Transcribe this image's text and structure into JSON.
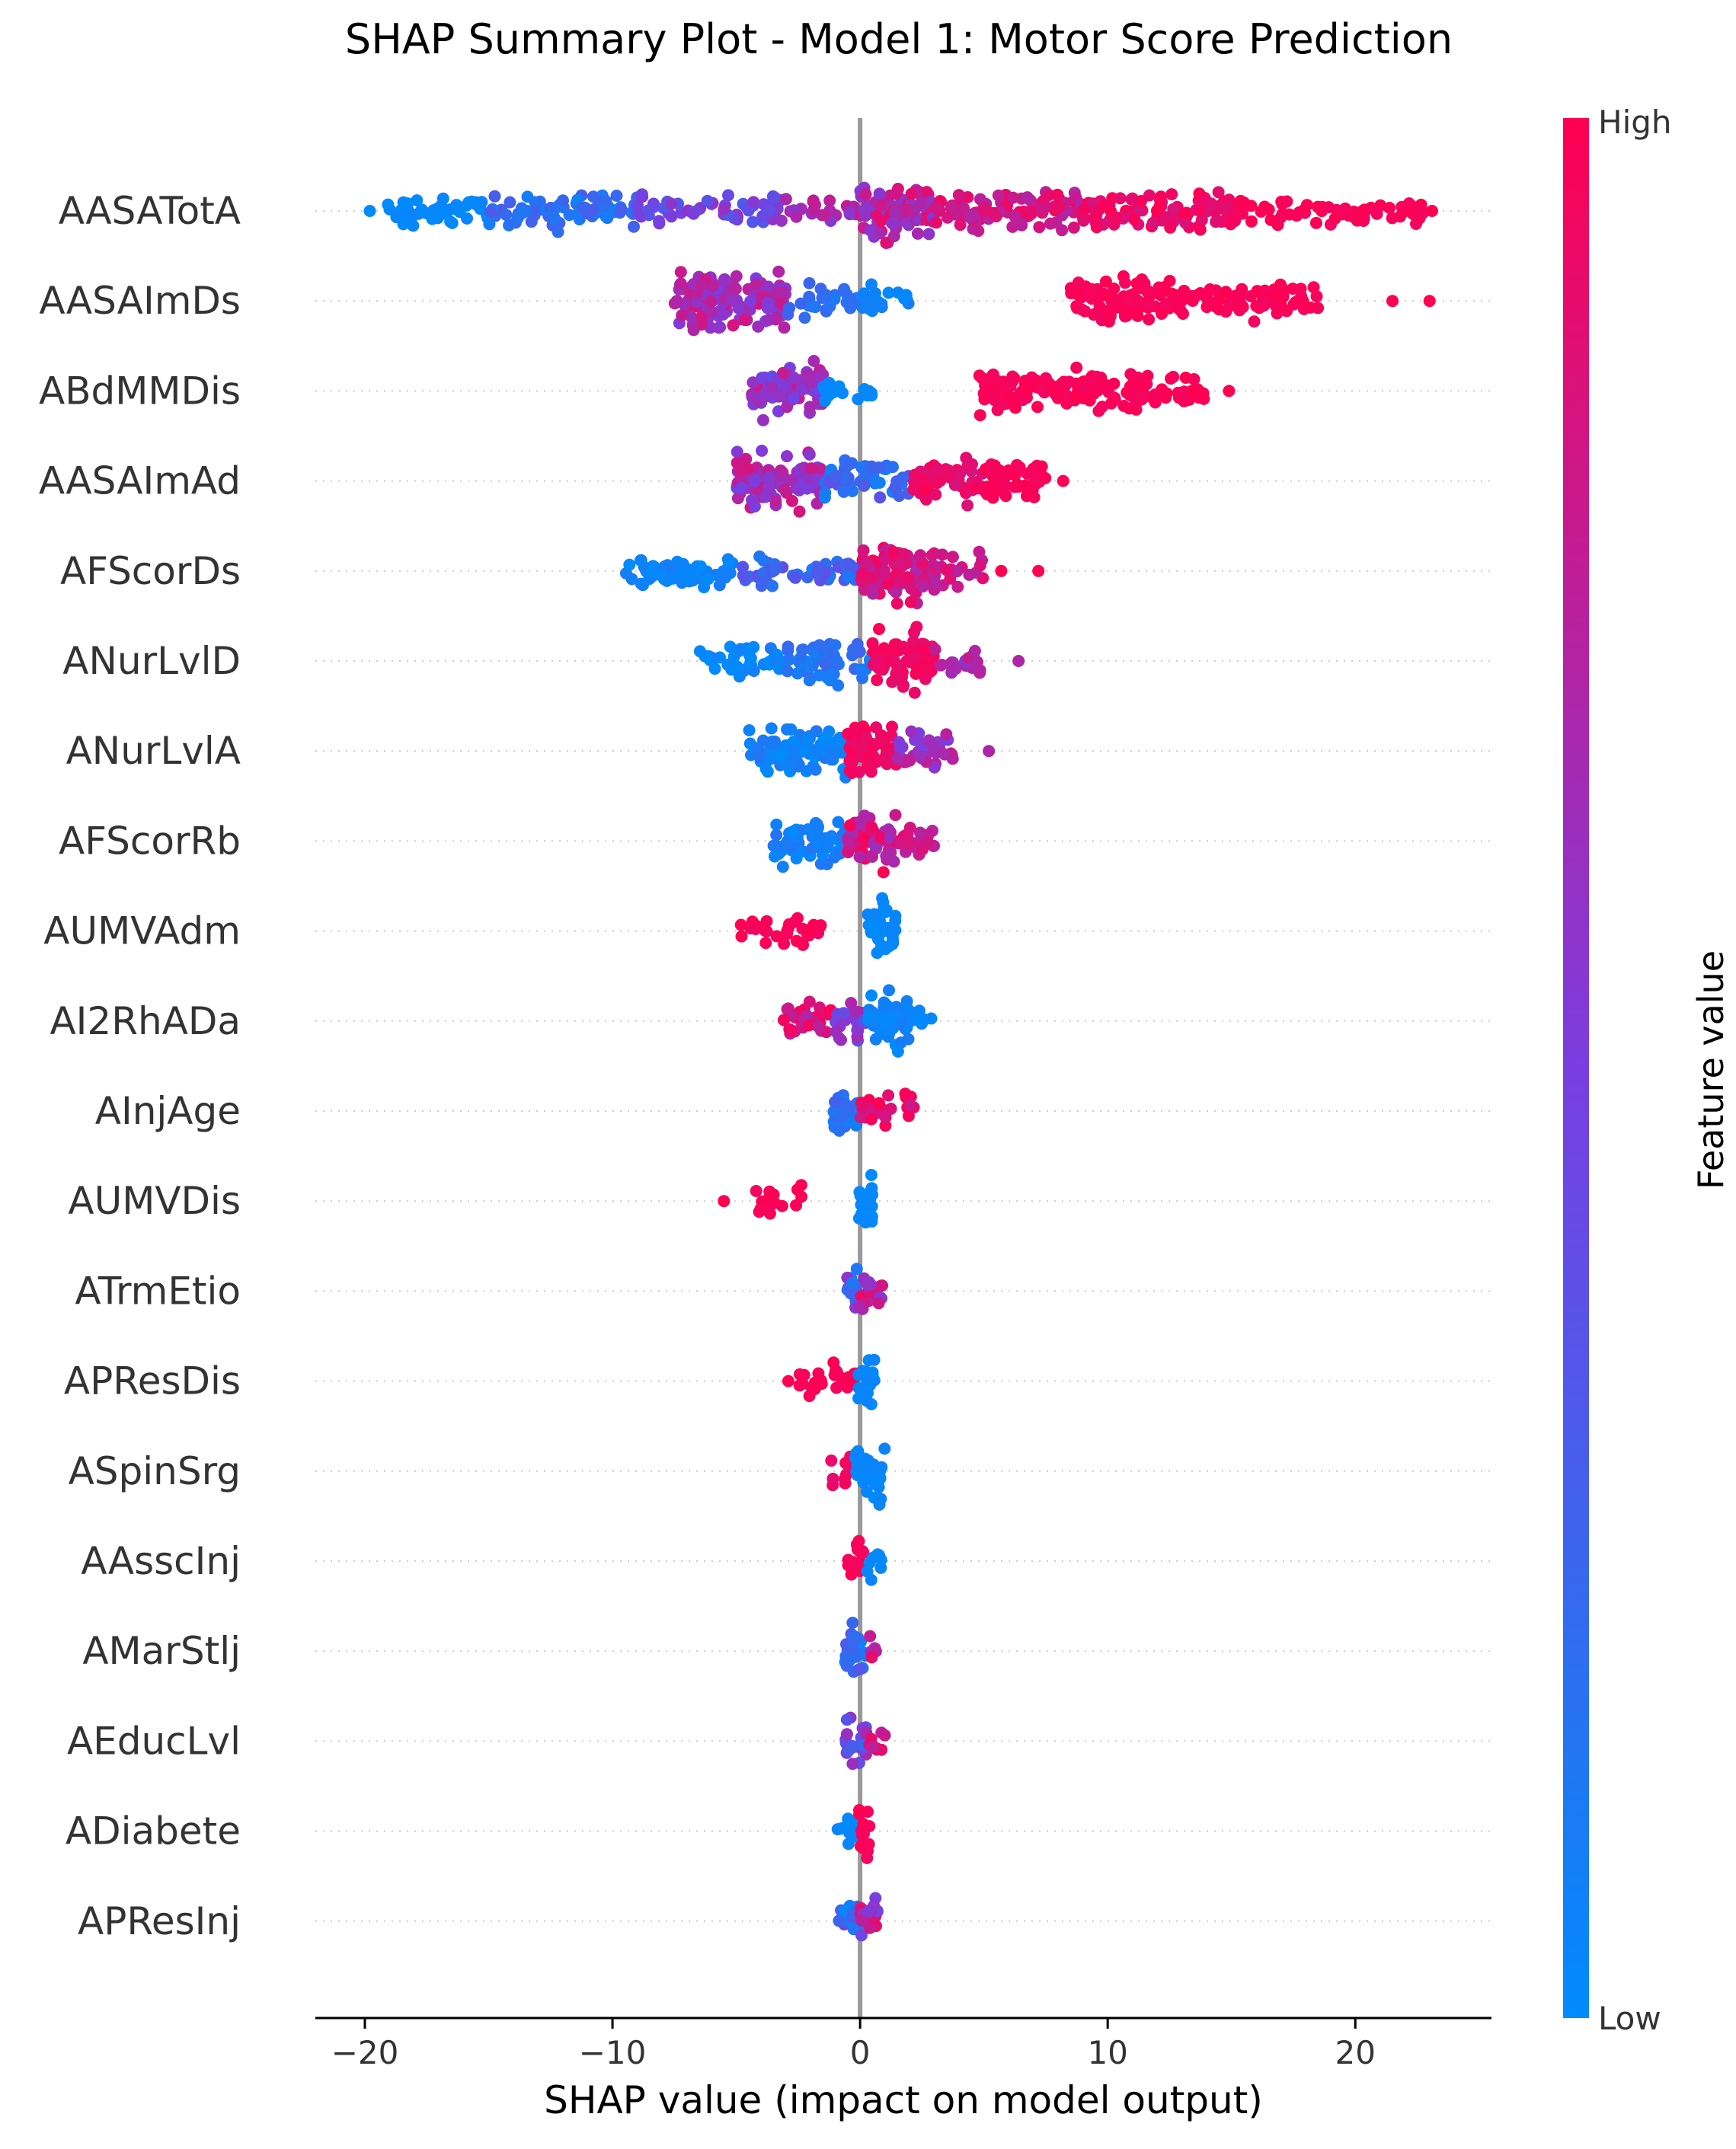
{
  "chart_data": {
    "type": "scatter",
    "subtype": "beeswarm",
    "title": "SHAP Summary Plot - Model 1: Motor Score Prediction",
    "xlabel": "SHAP value (impact on model output)",
    "xlim": [
      -22,
      25.5
    ],
    "xticks": [
      {
        "value": -20,
        "label": "−20"
      },
      {
        "value": -10,
        "label": "−10"
      },
      {
        "value": 0,
        "label": "0"
      },
      {
        "value": 10,
        "label": "10"
      },
      {
        "value": 20,
        "label": "20"
      }
    ],
    "colorbar": {
      "label": "Feature value",
      "high_label": "High",
      "low_label": "Low",
      "low_color": "#008bfb",
      "high_color": "#ff0052"
    },
    "features": [
      {
        "name": "AASATotA",
        "segments": [
          [
            -19.5,
            -15,
            0.0,
            0.04,
            0.35
          ],
          [
            -15,
            -9,
            0.06,
            0.32,
            0.45
          ],
          [
            -9,
            -3,
            0.3,
            0.62,
            0.35
          ],
          [
            -3,
            0,
            0.55,
            0.8,
            0.3
          ],
          [
            0,
            3,
            0.55,
            0.95,
            1.0
          ],
          [
            3,
            9,
            0.7,
            0.95,
            0.55
          ],
          [
            9,
            15,
            0.85,
            1.0,
            0.6
          ],
          [
            15,
            23,
            0.95,
            1.0,
            0.3
          ]
        ],
        "outliers": [
          [
            -19.8,
            0.0
          ],
          [
            23.1,
            1.0
          ],
          [
            22.0,
            1.0
          ]
        ]
      },
      {
        "name": "AASAImDs",
        "segments": [
          [
            -7.5,
            -3,
            0.5,
            0.85,
            1.0
          ],
          [
            -3,
            0,
            0.1,
            0.3,
            0.35
          ],
          [
            0,
            2,
            0.0,
            0.1,
            0.4
          ],
          [
            8.5,
            13,
            0.95,
            1.0,
            0.65
          ],
          [
            13,
            18.5,
            0.95,
            1.0,
            0.45
          ]
        ],
        "outliers": [
          [
            23.0,
            1.0
          ],
          [
            21.5,
            1.0
          ],
          [
            -7.4,
            0.7
          ]
        ]
      },
      {
        "name": "ABdMMDis",
        "segments": [
          [
            -4.5,
            -1.5,
            0.4,
            0.8,
            1.0
          ],
          [
            -1.5,
            1,
            0.0,
            0.05,
            0.25
          ],
          [
            4.8,
            10,
            0.95,
            1.0,
            0.7
          ],
          [
            10,
            14,
            0.95,
            1.0,
            0.45
          ]
        ],
        "outliers": [
          [
            14.9,
            1.0
          ],
          [
            13.4,
            1.0
          ]
        ]
      },
      {
        "name": "AASAImAd",
        "segments": [
          [
            -5,
            -1.5,
            0.45,
            0.85,
            1.0
          ],
          [
            -1.5,
            2,
            0.05,
            0.4,
            0.55
          ],
          [
            2,
            5,
            0.85,
            1.0,
            0.65
          ],
          [
            5,
            7.5,
            0.95,
            1.0,
            0.75
          ]
        ],
        "outliers": [
          [
            8.2,
            1.0
          ]
        ]
      },
      {
        "name": "AFScorDs",
        "segments": [
          [
            -9.5,
            -5,
            0.0,
            0.1,
            0.45
          ],
          [
            -5,
            0,
            0.1,
            0.4,
            0.35
          ],
          [
            0,
            3,
            0.7,
            0.95,
            1.0
          ],
          [
            3,
            5,
            0.7,
            0.9,
            0.4
          ]
        ],
        "outliers": [
          [
            7.2,
            1.0
          ],
          [
            5.7,
            1.0
          ]
        ]
      },
      {
        "name": "ANurLvlD",
        "segments": [
          [
            -6.5,
            -3,
            0.0,
            0.1,
            0.4
          ],
          [
            -3,
            0.5,
            0.05,
            0.25,
            0.6
          ],
          [
            0.5,
            3,
            0.9,
            1.0,
            1.0
          ],
          [
            3,
            5,
            0.55,
            0.8,
            0.4
          ]
        ],
        "outliers": [
          [
            6.4,
            0.7
          ]
        ]
      },
      {
        "name": "ANurLvlA",
        "segments": [
          [
            -4.5,
            -0.5,
            0.0,
            0.15,
            0.75
          ],
          [
            -0.5,
            1.5,
            0.9,
            1.0,
            1.0
          ],
          [
            1.5,
            4,
            0.5,
            0.8,
            0.55
          ]
        ],
        "outliers": [
          [
            5.2,
            0.7
          ]
        ]
      },
      {
        "name": "AFScorRb",
        "segments": [
          [
            -3.5,
            -0.5,
            0.0,
            0.15,
            0.7
          ],
          [
            -0.5,
            1.5,
            0.6,
            1.0,
            1.0
          ],
          [
            1.5,
            3,
            0.7,
            0.9,
            0.5
          ]
        ],
        "outliers": []
      },
      {
        "name": "AUMVAdm",
        "segments": [
          [
            -5,
            -1.5,
            0.95,
            1.0,
            0.3
          ],
          [
            0.3,
            1.5,
            0.0,
            0.05,
            0.95
          ]
        ],
        "outliers": []
      },
      {
        "name": "AI2RhADa",
        "segments": [
          [
            -3.2,
            -1,
            0.7,
            1.0,
            0.55
          ],
          [
            -1,
            0.3,
            0.4,
            0.7,
            0.65
          ],
          [
            0.3,
            2,
            0.0,
            0.1,
            1.0
          ],
          [
            2,
            3,
            0.0,
            0.05,
            0.35
          ]
        ],
        "outliers": []
      },
      {
        "name": "AInjAge",
        "segments": [
          [
            -1.2,
            0,
            0.0,
            0.35,
            0.85
          ],
          [
            0,
            2.2,
            0.8,
            1.0,
            0.45
          ]
        ],
        "outliers": []
      },
      {
        "name": "AUMVDis",
        "segments": [
          [
            -4.2,
            -2.3,
            0.95,
            1.0,
            0.3
          ],
          [
            -0.1,
            0.5,
            0.0,
            0.05,
            1.0
          ]
        ],
        "outliers": [
          [
            -5.5,
            1.0
          ]
        ]
      },
      {
        "name": "ATrmEtio",
        "segments": [
          [
            -0.6,
            0,
            0.0,
            0.6,
            0.8
          ],
          [
            0,
            0.9,
            0.5,
            0.95,
            0.7
          ]
        ],
        "outliers": []
      },
      {
        "name": "APResDis",
        "segments": [
          [
            -2.5,
            -0.1,
            0.95,
            1.0,
            0.35
          ],
          [
            -0.1,
            0.6,
            0.0,
            0.05,
            0.95
          ]
        ],
        "outliers": [
          [
            -2.9,
            1.0
          ]
        ]
      },
      {
        "name": "ASpinSrg",
        "segments": [
          [
            -1.2,
            -0.1,
            0.9,
            1.0,
            0.45
          ],
          [
            -0.2,
            1.0,
            0.0,
            0.05,
            1.0
          ]
        ],
        "outliers": []
      },
      {
        "name": "AAsscInj",
        "segments": [
          [
            -0.5,
            0.2,
            0.95,
            1.0,
            0.8
          ],
          [
            0.2,
            0.9,
            0.0,
            0.05,
            0.4
          ]
        ],
        "outliers": []
      },
      {
        "name": "AMarStlj",
        "segments": [
          [
            -0.6,
            0.3,
            0.0,
            0.4,
            0.9
          ],
          [
            0.3,
            0.8,
            0.55,
            0.95,
            0.4
          ]
        ],
        "outliers": []
      },
      {
        "name": "AEducLvl",
        "segments": [
          [
            -0.6,
            0.3,
            0.2,
            0.7,
            0.9
          ],
          [
            0.3,
            1.0,
            0.7,
            1.0,
            0.45
          ]
        ],
        "outliers": []
      },
      {
        "name": "ADiabete",
        "segments": [
          [
            -1.0,
            -0.1,
            0.0,
            0.05,
            0.4
          ],
          [
            -0.1,
            0.4,
            0.95,
            1.0,
            1.0
          ]
        ],
        "outliers": []
      },
      {
        "name": "APResInj",
        "segments": [
          [
            -1.0,
            0,
            0.0,
            0.45,
            0.7
          ],
          [
            0,
            0.7,
            0.4,
            1.0,
            0.85
          ]
        ],
        "outliers": []
      }
    ]
  }
}
